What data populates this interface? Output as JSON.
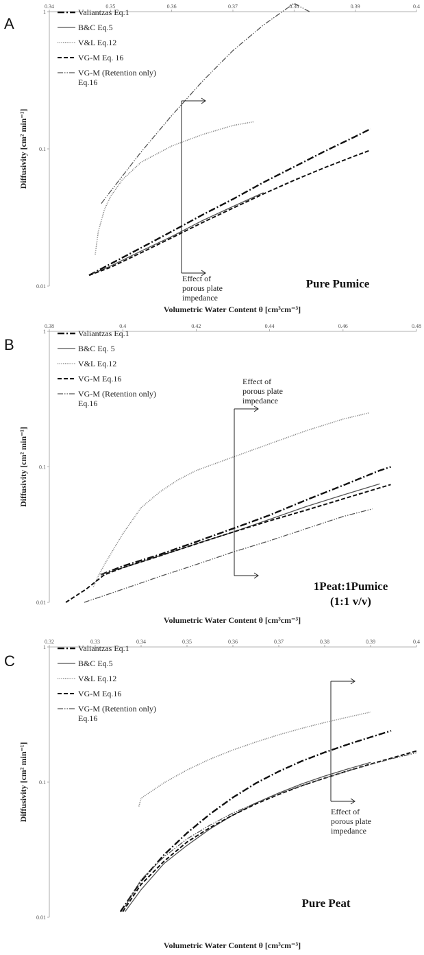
{
  "chart_data": [
    {
      "type": "line",
      "panel": "A",
      "sample_label": "Pure Pumice",
      "xlabel": "Volumetric Water Content θ [cm³cm⁻³]",
      "ylabel": "Diffusivity [cm² min⁻¹]",
      "xlim": [
        0.34,
        0.4
      ],
      "ylim": [
        0.01,
        1
      ],
      "y_scale": "log",
      "x_ticks": [
        "0.34",
        "0.35",
        "0.36",
        "0.37",
        "0.38",
        "0.39",
        "0.4"
      ],
      "y_ticks": [
        "0.01",
        "0.1",
        "1"
      ],
      "annotation": [
        "Effect of",
        "porous plate",
        "impedance"
      ],
      "legend": [
        "Valiantzas Eq.1",
        "B&C Eq.5",
        "V&L Eq.12",
        "VG-M Eq. 16",
        "VG-M (Retention only)",
        "Eq.16"
      ],
      "series": [
        {
          "name": "Valiantzas Eq.1",
          "x": [
            0.3465,
            0.35,
            0.355,
            0.36,
            0.365,
            0.37,
            0.375,
            0.38,
            0.385,
            0.39,
            0.3925
          ],
          "y": [
            0.012,
            0.0145,
            0.019,
            0.025,
            0.033,
            0.043,
            0.057,
            0.074,
            0.096,
            0.123,
            0.14
          ]
        },
        {
          "name": "B&C Eq.5",
          "x": [
            0.3465,
            0.35,
            0.355,
            0.36,
            0.365,
            0.37,
            0.375
          ],
          "y": [
            0.012,
            0.014,
            0.018,
            0.023,
            0.03,
            0.038,
            0.048
          ]
        },
        {
          "name": "V&L Eq.12",
          "x": [
            0.3475,
            0.348,
            0.349,
            0.35,
            0.352,
            0.355,
            0.36,
            0.365,
            0.37,
            0.3735
          ],
          "y": [
            0.017,
            0.025,
            0.036,
            0.045,
            0.06,
            0.08,
            0.105,
            0.127,
            0.148,
            0.158
          ]
        },
        {
          "name": "VG-M Eq. 16",
          "x": [
            0.3465,
            0.35,
            0.355,
            0.36,
            0.365,
            0.37,
            0.375,
            0.38,
            0.385,
            0.39,
            0.3925
          ],
          "y": [
            0.012,
            0.0137,
            0.0175,
            0.0225,
            0.029,
            0.037,
            0.047,
            0.059,
            0.073,
            0.089,
            0.098
          ]
        },
        {
          "name": "VG-M (Retention only) Eq.16",
          "x": [
            0.3485,
            0.35,
            0.355,
            0.36,
            0.365,
            0.37,
            0.375,
            0.38,
            0.3825
          ],
          "y": [
            0.04,
            0.049,
            0.095,
            0.175,
            0.31,
            0.52,
            0.8,
            1.15,
            1.0
          ]
        }
      ]
    },
    {
      "type": "line",
      "panel": "B",
      "sample_label": [
        "1Peat:1Pumice",
        "(1:1 v/v)"
      ],
      "xlabel": "Volumetric Water Content θ [cm³cm⁻³]",
      "ylabel": "Diffusivity [cm² min⁻¹]",
      "xlim": [
        0.38,
        0.48
      ],
      "ylim": [
        0.01,
        1
      ],
      "y_scale": "log",
      "x_ticks": [
        "0.38",
        "0.4",
        "0.42",
        "0.44",
        "0.46",
        "0.48"
      ],
      "y_ticks": [
        "0.01",
        "0.1",
        "1"
      ],
      "annotation": [
        "Effect of",
        "porous plate",
        "impedance"
      ],
      "legend": [
        "Valiantzas Eq.1",
        "B&C Eq. 5",
        "V&L Eq.12",
        "VG-M Eq.16",
        "VG-M (Retention only)",
        "Eq.16"
      ],
      "series": [
        {
          "name": "Valiantzas Eq.1",
          "x": [
            0.394,
            0.4,
            0.41,
            0.42,
            0.43,
            0.44,
            0.45,
            0.46,
            0.47,
            0.473
          ],
          "y": [
            0.016,
            0.0185,
            0.0225,
            0.028,
            0.035,
            0.044,
            0.057,
            0.073,
            0.094,
            0.1
          ]
        },
        {
          "name": "B&C Eq. 5",
          "x": [
            0.394,
            0.4,
            0.41,
            0.42,
            0.43,
            0.44,
            0.45,
            0.46,
            0.47
          ],
          "y": [
            0.016,
            0.018,
            0.022,
            0.027,
            0.033,
            0.041,
            0.051,
            0.062,
            0.075
          ]
        },
        {
          "name": "V&L Eq.12",
          "x": [
            0.392,
            0.393,
            0.395,
            0.4,
            0.405,
            0.41,
            0.415,
            0.42,
            0.43,
            0.44,
            0.45,
            0.46,
            0.467
          ],
          "y": [
            0.013,
            0.015,
            0.019,
            0.032,
            0.05,
            0.065,
            0.08,
            0.094,
            0.118,
            0.148,
            0.185,
            0.225,
            0.25
          ]
        },
        {
          "name": "VG-M Eq.16",
          "x": [
            0.3845,
            0.39,
            0.395,
            0.4,
            0.41,
            0.42,
            0.43,
            0.44,
            0.45,
            0.46,
            0.47,
            0.473
          ],
          "y": [
            0.01,
            0.0125,
            0.016,
            0.018,
            0.022,
            0.027,
            0.033,
            0.04,
            0.048,
            0.058,
            0.07,
            0.074
          ]
        },
        {
          "name": "VG-M (Retention only) Eq.16",
          "x": [
            0.3895,
            0.4,
            0.41,
            0.42,
            0.43,
            0.44,
            0.45,
            0.46,
            0.468
          ],
          "y": [
            0.01,
            0.0125,
            0.0155,
            0.019,
            0.0235,
            0.0285,
            0.035,
            0.043,
            0.049
          ]
        }
      ]
    },
    {
      "type": "line",
      "panel": "C",
      "sample_label": "Pure Peat",
      "xlabel": "Volumetric Water Content θ [cm³cm⁻³]",
      "ylabel": "Diffusivity [cm² min⁻¹]",
      "xlim": [
        0.32,
        0.4
      ],
      "ylim": [
        0.01,
        1
      ],
      "y_scale": "log",
      "x_ticks": [
        "0.32",
        "0.33",
        "0.34",
        "0.35",
        "0.36",
        "0.37",
        "0.38",
        "0.39",
        "0.4"
      ],
      "y_ticks": [
        "0.01",
        "0.1",
        "1"
      ],
      "annotation": [
        "Effect of",
        "porous plate",
        "impedance"
      ],
      "legend": [
        "Valiantzas Eq.1",
        "B&C Eq.5",
        "V&L Eq.12",
        "VG-M Eq.16",
        "VG-M (Retention only)",
        "Eq.16"
      ],
      "series": [
        {
          "name": "Valiantzas Eq.1",
          "x": [
            0.3355,
            0.34,
            0.345,
            0.35,
            0.355,
            0.36,
            0.365,
            0.37,
            0.375,
            0.38,
            0.385,
            0.39,
            0.3945
          ],
          "y": [
            0.011,
            0.0185,
            0.029,
            0.042,
            0.058,
            0.077,
            0.098,
            0.12,
            0.143,
            0.166,
            0.19,
            0.215,
            0.24
          ]
        },
        {
          "name": "B&C Eq.5",
          "x": [
            0.3365,
            0.34,
            0.345,
            0.35,
            0.355,
            0.36,
            0.365,
            0.37,
            0.375,
            0.38,
            0.385,
            0.39
          ],
          "y": [
            0.011,
            0.016,
            0.025,
            0.034,
            0.045,
            0.057,
            0.07,
            0.083,
            0.097,
            0.111,
            0.125,
            0.14
          ]
        },
        {
          "name": "V&L Eq.12",
          "x": [
            0.3395,
            0.34,
            0.345,
            0.35,
            0.355,
            0.36,
            0.365,
            0.37,
            0.375,
            0.38,
            0.385,
            0.39
          ],
          "y": [
            0.066,
            0.076,
            0.099,
            0.123,
            0.148,
            0.173,
            0.198,
            0.224,
            0.25,
            0.276,
            0.302,
            0.33
          ]
        },
        {
          "name": "VG-M Eq.16",
          "x": [
            0.336,
            0.34,
            0.345,
            0.35,
            0.355,
            0.36,
            0.365,
            0.37,
            0.375,
            0.38,
            0.385,
            0.39,
            0.395,
            0.4
          ],
          "y": [
            0.011,
            0.0175,
            0.026,
            0.036,
            0.046,
            0.057,
            0.069,
            0.081,
            0.094,
            0.107,
            0.121,
            0.136,
            0.152,
            0.17
          ]
        },
        {
          "name": "VG-M (Retention only) Eq.16",
          "x": [
            0.3365,
            0.34,
            0.345,
            0.35,
            0.355,
            0.36,
            0.365,
            0.37,
            0.375,
            0.38,
            0.385,
            0.39,
            0.395,
            0.4
          ],
          "y": [
            0.012,
            0.019,
            0.028,
            0.038,
            0.048,
            0.059,
            0.07,
            0.082,
            0.094,
            0.107,
            0.121,
            0.135,
            0.15,
            0.165
          ]
        }
      ]
    }
  ]
}
